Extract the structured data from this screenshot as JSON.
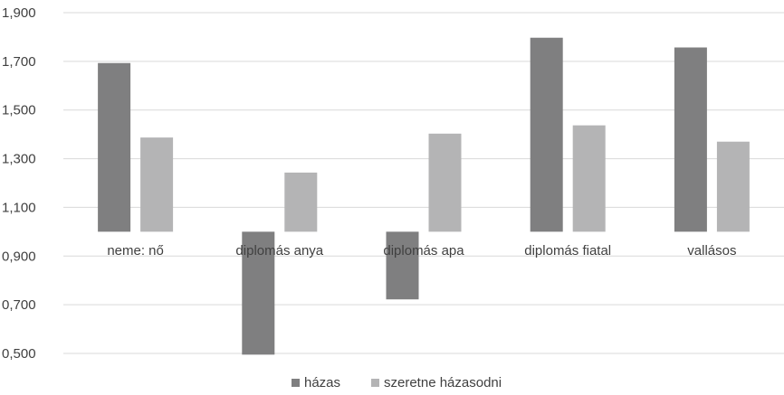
{
  "chart_data": {
    "type": "bar",
    "categories": [
      "neme: nő",
      "diplomás anya",
      "diplomás apa",
      "diplomás fiatal",
      "vallásos"
    ],
    "series": [
      {
        "name": "házas",
        "color": "#7f7f80",
        "values": [
          1.693,
          0.495,
          0.722,
          1.797,
          1.757
        ]
      },
      {
        "name": "szeretne házasodni",
        "color": "#b4b4b5",
        "values": [
          1.387,
          1.243,
          1.403,
          1.437,
          1.37
        ]
      }
    ],
    "baseline": 1.0,
    "ylim": [
      0.5,
      1.9
    ],
    "yticks": [
      "0,500",
      "0,700",
      "0,900",
      "1,100",
      "1,300",
      "1,500",
      "1,700",
      "1,900"
    ],
    "grid": true,
    "legend_position": "bottom",
    "title": "",
    "xlabel": "",
    "ylabel": ""
  }
}
